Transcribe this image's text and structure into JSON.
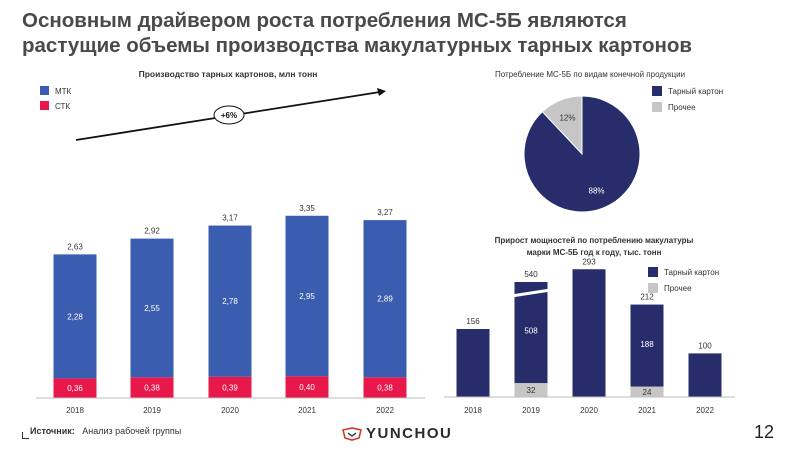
{
  "slide": {
    "title_line1": "Основным драйвером роста потребления МС-5Б являются",
    "title_line2": "растущие объемы производства макулатурных тарных картонов",
    "page_number": "12",
    "source_label": "Источник:",
    "source_text": "Анализ рабочей группы",
    "logo_text": "YUNCHOU"
  },
  "chart_data": [
    {
      "type": "bar",
      "stacked": true,
      "title": "Производство тарных картонов, млн тонн",
      "categories": [
        "2018",
        "2019",
        "2020",
        "2021",
        "2022"
      ],
      "series": [
        {
          "name": "СТК",
          "color": "#e8194a",
          "values": [
            0.36,
            0.38,
            0.39,
            0.4,
            0.38
          ],
          "labels": [
            "0,36",
            "0,38",
            "0,39",
            "0,40",
            "0,38"
          ]
        },
        {
          "name": "МТК",
          "color": "#3b5db0",
          "values": [
            2.28,
            2.55,
            2.78,
            2.95,
            2.89
          ],
          "labels": [
            "2,28",
            "2,55",
            "2,78",
            "2,95",
            "2,89"
          ]
        }
      ],
      "totals": [
        "2,63",
        "2,92",
        "3,17",
        "3,35",
        "3,27"
      ],
      "total_values": [
        2.63,
        2.92,
        3.17,
        3.35,
        3.27
      ],
      "annotation": "+6%",
      "ylim": [
        0,
        3.5
      ],
      "legend_order": [
        "МТК",
        "СТК"
      ],
      "legend_position": "top-left"
    },
    {
      "type": "pie",
      "title": "Потребление МС-5Б по видам конечной продукции",
      "slices": [
        {
          "name": "Тарный картон",
          "value": 88,
          "label": "88%",
          "color": "#272d6b"
        },
        {
          "name": "Прочее",
          "value": 12,
          "label": "12%",
          "color": "#c6c6c6"
        }
      ],
      "legend_position": "right"
    },
    {
      "type": "bar",
      "stacked": true,
      "title_line1": "Прирост мощностей по потреблению макулатуры",
      "title_line2": "марки МС-5Б год к году, тыс. тонн",
      "categories": [
        "2018",
        "2019",
        "2020",
        "2021",
        "2022"
      ],
      "series": [
        {
          "name": "Прочее",
          "color": "#c6c6c6",
          "values": [
            0,
            32,
            0,
            24,
            0
          ],
          "labels": [
            "",
            "32",
            "",
            "24",
            ""
          ]
        },
        {
          "name": "Тарный картон",
          "color": "#272d6b",
          "values": [
            156,
            508,
            293,
            188,
            100
          ],
          "labels": [
            "",
            "508",
            "",
            "188",
            ""
          ]
        }
      ],
      "totals": [
        "156",
        "540",
        "293",
        "212",
        "100"
      ],
      "total_values": [
        156,
        540,
        293,
        212,
        100
      ],
      "axis_break_category": "2019",
      "legend_order": [
        "Тарный картон",
        "Прочее"
      ],
      "legend_position": "top-right"
    }
  ]
}
